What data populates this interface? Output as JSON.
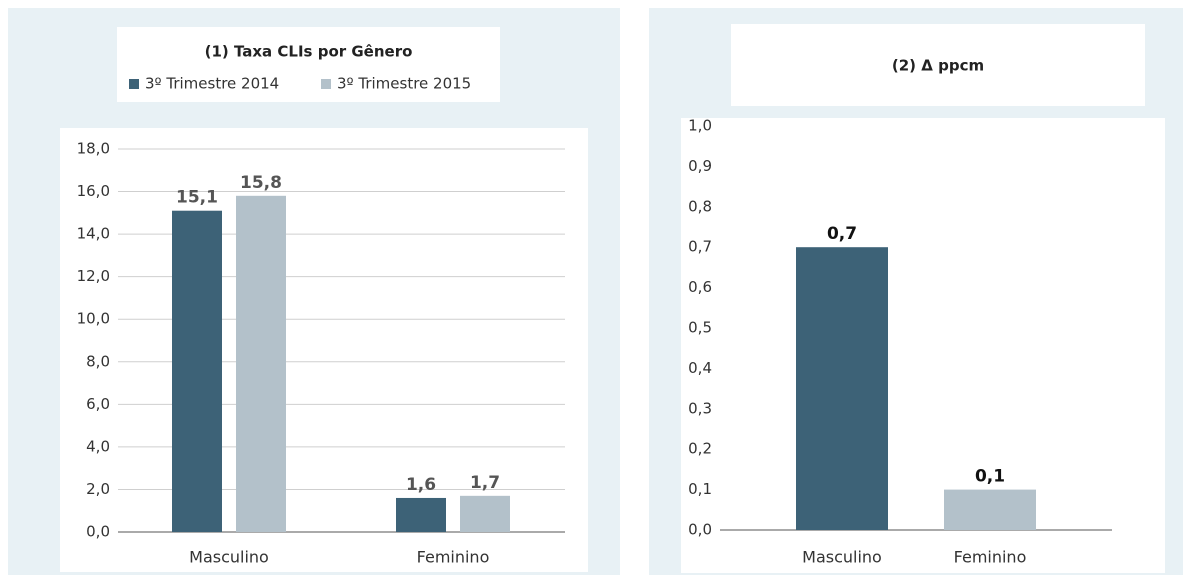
{
  "chart_data": [
    {
      "type": "bar",
      "title": "(1) Taxa CLIs por Gênero",
      "categories": [
        "Masculino",
        "Feminino"
      ],
      "series": [
        {
          "name": "3º Trimestre 2014",
          "color": "#3d6277",
          "values": [
            15.1,
            1.6
          ],
          "value_labels": [
            "15,1",
            "1,6"
          ]
        },
        {
          "name": "3º Trimestre 2015",
          "color": "#b3c1ca",
          "values": [
            15.8,
            1.7
          ],
          "value_labels": [
            "15,8",
            "1,7"
          ]
        }
      ],
      "ylim": [
        0,
        18
      ],
      "yticks": [
        {
          "value": 0,
          "label": "0,0"
        },
        {
          "value": 2,
          "label": "2,0"
        },
        {
          "value": 4,
          "label": "4,0"
        },
        {
          "value": 6,
          "label": "6,0"
        },
        {
          "value": 8,
          "label": "8,0"
        },
        {
          "value": 10,
          "label": "10,0"
        },
        {
          "value": 12,
          "label": "12,0"
        },
        {
          "value": 14,
          "label": "14,0"
        },
        {
          "value": 16,
          "label": "16,0"
        },
        {
          "value": 18,
          "label": "18,0"
        }
      ],
      "grid": true
    },
    {
      "type": "bar",
      "title": "(2) Δ ppcm",
      "categories": [
        "Masculino",
        "Feminino"
      ],
      "values": [
        0.7,
        0.1
      ],
      "value_labels": [
        "0,7",
        "0,1"
      ],
      "colors": [
        "#3d6277",
        "#b3c1ca"
      ],
      "ylim": [
        0,
        1
      ],
      "yticks": [
        {
          "value": 0,
          "label": "0,0"
        },
        {
          "value": 0.1,
          "label": "0,1"
        },
        {
          "value": 0.2,
          "label": "0,2"
        },
        {
          "value": 0.3,
          "label": "0,3"
        },
        {
          "value": 0.4,
          "label": "0,4"
        },
        {
          "value": 0.5,
          "label": "0,5"
        },
        {
          "value": 0.6,
          "label": "0,6"
        },
        {
          "value": 0.7,
          "label": "0,7"
        },
        {
          "value": 0.8,
          "label": "0,8"
        },
        {
          "value": 0.9,
          "label": "0,9"
        },
        {
          "value": 1,
          "label": "1,0"
        }
      ],
      "grid": false
    }
  ]
}
